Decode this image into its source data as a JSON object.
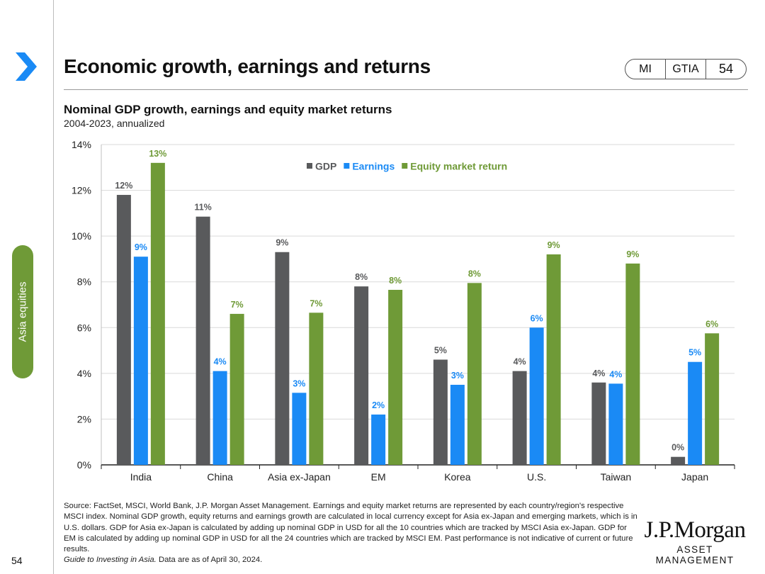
{
  "sidebar": {
    "section_label": "Asia equities",
    "page_number": "54"
  },
  "header": {
    "title": "Economic growth, earnings and returns",
    "badges": [
      "MI",
      "GTIA",
      "54"
    ]
  },
  "colors": {
    "gdp": "#595a5c",
    "earnings": "#1a8af5",
    "equity": "#6f9a37",
    "accent": "#1a8af5",
    "sidebar": "#6f9a37"
  },
  "chart_data": {
    "type": "bar",
    "title": "Nominal GDP growth, earnings and equity market returns",
    "subtitle": "2004-2023, annualized",
    "categories": [
      "India",
      "China",
      "Asia ex-Japan",
      "EM",
      "Korea",
      "U.S.",
      "Taiwan",
      "Japan"
    ],
    "series": [
      {
        "name": "GDP",
        "values": [
          11.8,
          10.85,
          9.3,
          7.8,
          4.6,
          4.1,
          3.6,
          0.35
        ],
        "labels": [
          "12%",
          "11%",
          "9%",
          "8%",
          "5%",
          "4%",
          "4%",
          "0%"
        ]
      },
      {
        "name": "Earnings",
        "values": [
          9.1,
          4.1,
          3.15,
          2.2,
          3.5,
          6.0,
          3.55,
          4.5
        ],
        "labels": [
          "9%",
          "4%",
          "3%",
          "2%",
          "3%",
          "6%",
          "4%",
          "5%"
        ]
      },
      {
        "name": "Equity market return",
        "values": [
          13.2,
          6.6,
          6.65,
          7.65,
          7.95,
          9.2,
          8.8,
          5.75
        ],
        "labels": [
          "13%",
          "7%",
          "7%",
          "8%",
          "8%",
          "9%",
          "9%",
          "6%"
        ]
      }
    ],
    "ylim": [
      0,
      14
    ],
    "yticks": [
      "0%",
      "2%",
      "4%",
      "6%",
      "8%",
      "10%",
      "12%",
      "14%"
    ],
    "xlabel": "",
    "ylabel": "",
    "grid": true,
    "legend": "top-center"
  },
  "footnote": {
    "source": "Source: FactSet, MSCI, World Bank, J.P. Morgan Asset Management. Earnings and equity market returns are represented by each country/region's respective MSCI index. Nominal GDP growth, equity returns and earnings growth are calculated in local currency except for Asia ex-Japan and emerging markets, which is in U.S. dollars. GDP for Asia ex-Japan is calculated by adding up nominal GDP in USD for all the 10 countries which are tracked by MSCI Asia ex-Japan. GDP for EM is calculated by adding up nominal GDP in USD for all the 24 countries which are tracked by MSCI EM.",
    "disclaimer": "Past performance is not indicative of current or future results.",
    "guide_title": "Guide to Investing in Asia.",
    "data_date": "Data are as of April 30, 2024."
  },
  "logo": {
    "name": "J.P.Morgan",
    "subtitle": "ASSET MANAGEMENT"
  }
}
